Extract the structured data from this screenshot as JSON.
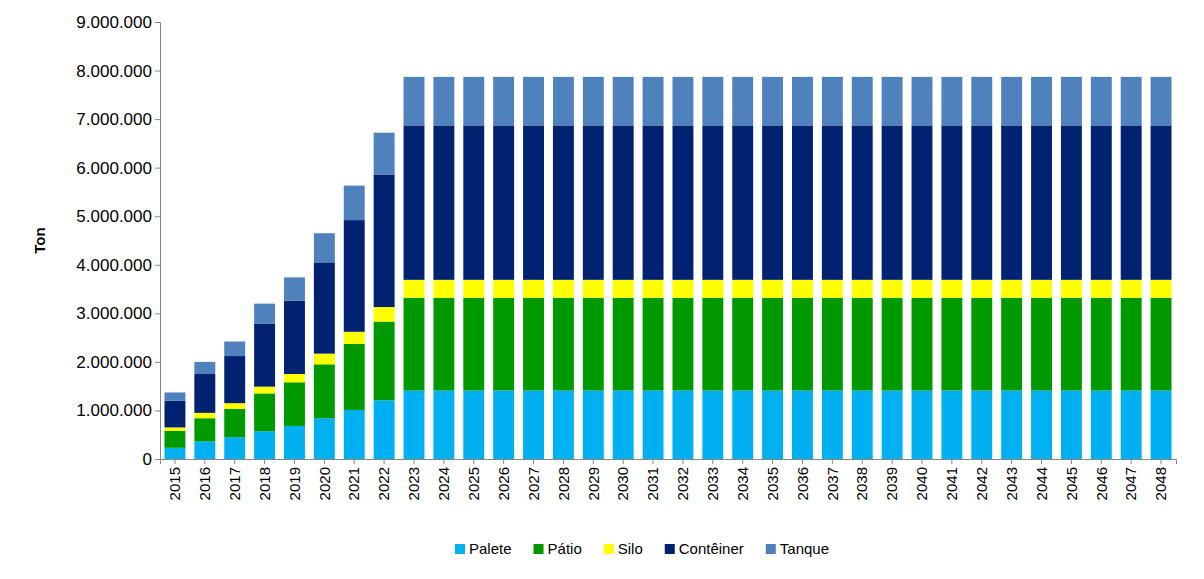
{
  "chart_data": {
    "type": "bar",
    "stacked": true,
    "grid": false,
    "legend": "bottom",
    "y_label": "Ton",
    "categories": [
      "2015",
      "2016",
      "2017",
      "2018",
      "2019",
      "2020",
      "2021",
      "2022",
      "2023",
      "2024",
      "2025",
      "2026",
      "2027",
      "2028",
      "2029",
      "2030",
      "2031",
      "2032",
      "2033",
      "2034",
      "2035",
      "2036",
      "2037",
      "2038",
      "2039",
      "2040",
      "2041",
      "2042",
      "2043",
      "2044",
      "2045",
      "2046",
      "2047",
      "2048"
    ],
    "ylim": [
      0,
      9000000
    ],
    "yticks": [
      0,
      {
        "value": 1000000,
        "label": "1.000.000"
      },
      {
        "value": 2000000,
        "label": "2.000.000"
      },
      {
        "value": 3000000,
        "label": "3.000.000"
      },
      {
        "value": 4000000,
        "label": "4.000.000"
      },
      {
        "value": 5000000,
        "label": "5.000.000"
      },
      {
        "value": 6000000,
        "label": "6.000.000"
      },
      {
        "value": 7000000,
        "label": "7.000.000"
      },
      {
        "value": 8000000,
        "label": "8.000.000"
      },
      {
        "value": 9000000,
        "label": "9.000.000"
      }
    ],
    "series": [
      {
        "name": "Palete",
        "color": "#00b0f0",
        "values": [
          230000,
          360000,
          450000,
          570000,
          680000,
          840000,
          1010000,
          1210000,
          1410000,
          1410000,
          1410000,
          1410000,
          1410000,
          1410000,
          1410000,
          1410000,
          1410000,
          1410000,
          1410000,
          1410000,
          1410000,
          1410000,
          1410000,
          1410000,
          1410000,
          1410000,
          1410000,
          1410000,
          1410000,
          1410000,
          1410000,
          1410000,
          1410000,
          1410000
        ]
      },
      {
        "name": "Pátio",
        "color": "#009900",
        "values": [
          350000,
          480000,
          580000,
          780000,
          900000,
          1110000,
          1360000,
          1620000,
          1910000,
          1910000,
          1910000,
          1910000,
          1910000,
          1910000,
          1910000,
          1910000,
          1910000,
          1910000,
          1910000,
          1910000,
          1910000,
          1910000,
          1910000,
          1910000,
          1910000,
          1910000,
          1910000,
          1910000,
          1910000,
          1910000,
          1910000,
          1910000,
          1910000,
          1910000
        ]
      },
      {
        "name": "Silo",
        "color": "#ffff00",
        "values": [
          70000,
          110000,
          120000,
          140000,
          170000,
          220000,
          250000,
          300000,
          370000,
          370000,
          370000,
          370000,
          370000,
          370000,
          370000,
          370000,
          370000,
          370000,
          370000,
          370000,
          370000,
          370000,
          370000,
          370000,
          370000,
          370000,
          370000,
          370000,
          370000,
          370000,
          370000,
          370000,
          370000,
          370000
        ]
      },
      {
        "name": "Contêiner",
        "color": "#002270",
        "values": [
          550000,
          800000,
          970000,
          1300000,
          1510000,
          1880000,
          2300000,
          2730000,
          3180000,
          3180000,
          3180000,
          3180000,
          3180000,
          3180000,
          3180000,
          3180000,
          3180000,
          3180000,
          3180000,
          3180000,
          3180000,
          3180000,
          3180000,
          3180000,
          3180000,
          3180000,
          3180000,
          3180000,
          3180000,
          3180000,
          3180000,
          3180000,
          3180000,
          3180000
        ]
      },
      {
        "name": "Tanque",
        "color": "#4f81bd",
        "values": [
          170000,
          250000,
          300000,
          410000,
          480000,
          600000,
          710000,
          860000,
          1000000,
          1000000,
          1000000,
          1000000,
          1000000,
          1000000,
          1000000,
          1000000,
          1000000,
          1000000,
          1000000,
          1000000,
          1000000,
          1000000,
          1000000,
          1000000,
          1000000,
          1000000,
          1000000,
          1000000,
          1000000,
          1000000,
          1000000,
          1000000,
          1000000,
          1000000
        ]
      }
    ]
  }
}
